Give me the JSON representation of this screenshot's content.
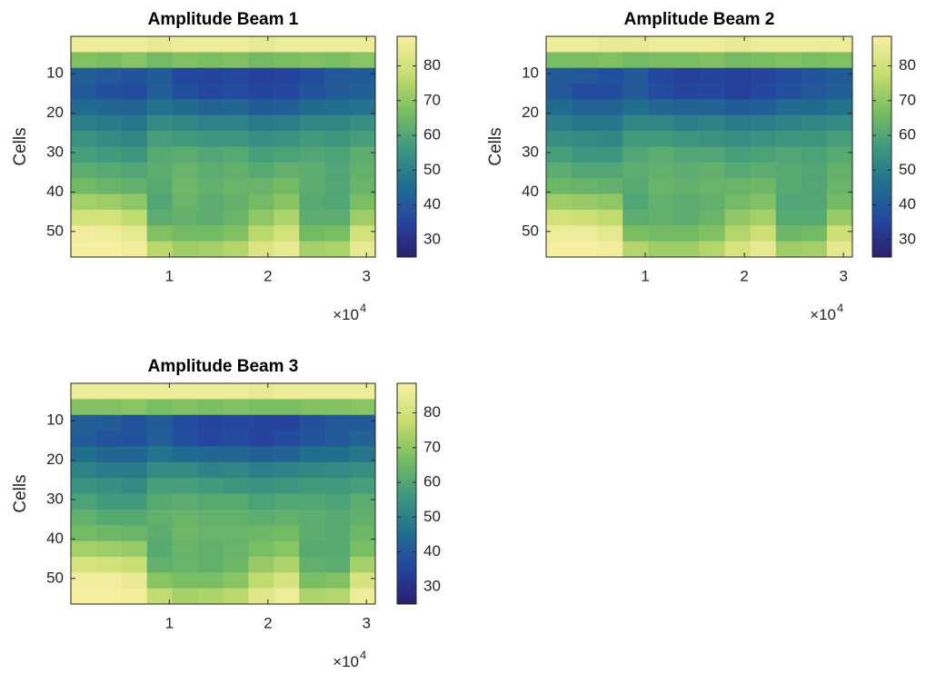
{
  "chart_data": [
    {
      "type": "heatmap",
      "title": "Amplitude Beam 1",
      "y_label": "Cells",
      "x": [
        1288,
        3863,
        6438,
        9013,
        11588,
        14163,
        16738,
        19313,
        21888,
        24463,
        27038,
        29613
      ],
      "y": [
        2.5,
        6.5,
        10.5,
        14.5,
        18.5,
        22.5,
        26.5,
        30.5,
        34.5,
        38.5,
        42.5,
        46.5,
        50.5,
        54.5
      ],
      "z": [
        [
          86,
          86,
          86,
          85,
          86,
          86,
          86,
          85,
          86,
          86,
          86,
          86
        ],
        [
          68,
          67,
          69,
          66,
          68,
          67,
          68,
          66,
          67,
          68,
          67,
          69
        ],
        [
          42,
          40,
          39,
          41,
          36,
          35,
          36,
          34,
          35,
          37,
          40,
          41
        ],
        [
          40,
          38,
          37,
          42,
          38,
          36,
          37,
          35,
          36,
          39,
          41,
          42
        ],
        [
          45,
          44,
          43,
          47,
          45,
          43,
          44,
          41,
          42,
          45,
          46,
          47
        ],
        [
          50,
          49,
          48,
          53,
          52,
          51,
          51,
          49,
          50,
          52,
          52,
          54
        ],
        [
          55,
          53,
          52,
          58,
          57,
          56,
          56,
          54,
          55,
          57,
          56,
          58
        ],
        [
          58,
          57,
          56,
          61,
          62,
          60,
          61,
          58,
          59,
          60,
          59,
          62
        ],
        [
          62,
          61,
          60,
          62,
          64,
          62,
          63,
          61,
          63,
          62,
          60,
          63
        ],
        [
          66,
          64,
          63,
          61,
          65,
          63,
          64,
          64,
          66,
          62,
          60,
          64
        ],
        [
          73,
          72,
          70,
          60,
          64,
          62,
          63,
          66,
          69,
          61,
          60,
          67
        ],
        [
          80,
          80,
          77,
          62,
          63,
          62,
          64,
          70,
          74,
          62,
          62,
          72
        ],
        [
          87,
          86,
          84,
          68,
          66,
          66,
          68,
          76,
          80,
          66,
          67,
          80
        ],
        [
          88,
          88,
          87,
          76,
          72,
          73,
          75,
          82,
          85,
          73,
          74,
          85
        ]
      ],
      "xlim": [
        1,
        30900
      ],
      "ylim": [
        0.5,
        56.5
      ],
      "y_reversed": true,
      "xticks": [
        {
          "value": 10000,
          "label": "1"
        },
        {
          "value": 20000,
          "label": "2"
        },
        {
          "value": 30000,
          "label": "3"
        }
      ],
      "x_multiplier": {
        "base": "×10",
        "exponent": "4"
      },
      "yticks": [
        10,
        20,
        30,
        40,
        50
      ],
      "clim": [
        25,
        88.5
      ],
      "cticks": [
        30,
        40,
        50,
        60,
        70,
        80
      ],
      "colormap": [
        "#2a1f6e",
        "#2446a0",
        "#21708f",
        "#3f9a7d",
        "#7cbf62",
        "#c9de70",
        "#f8f0a4"
      ]
    },
    {
      "type": "heatmap",
      "title": "Amplitude Beam 2",
      "y_label": "Cells",
      "x": [
        1288,
        3863,
        6438,
        9013,
        11588,
        14163,
        16738,
        19313,
        21888,
        24463,
        27038,
        29613
      ],
      "y": [
        2.5,
        6.5,
        10.5,
        14.5,
        18.5,
        22.5,
        26.5,
        30.5,
        34.5,
        38.5,
        42.5,
        46.5,
        50.5,
        54.5
      ],
      "z": [
        [
          86,
          86,
          85,
          85,
          86,
          86,
          86,
          85,
          86,
          86,
          86,
          86
        ],
        [
          67,
          67,
          68,
          66,
          67,
          67,
          68,
          66,
          67,
          68,
          67,
          68
        ],
        [
          41,
          40,
          38,
          40,
          36,
          34,
          35,
          34,
          35,
          37,
          39,
          41
        ],
        [
          40,
          37,
          37,
          41,
          37,
          35,
          36,
          34,
          36,
          38,
          40,
          42
        ],
        [
          45,
          43,
          43,
          46,
          44,
          43,
          43,
          41,
          42,
          45,
          45,
          47
        ],
        [
          50,
          48,
          48,
          52,
          52,
          50,
          51,
          49,
          50,
          51,
          52,
          53
        ],
        [
          54,
          53,
          52,
          57,
          57,
          56,
          55,
          54,
          55,
          56,
          56,
          58
        ],
        [
          58,
          56,
          56,
          60,
          62,
          60,
          60,
          58,
          59,
          60,
          59,
          61
        ],
        [
          62,
          60,
          60,
          62,
          63,
          62,
          63,
          61,
          62,
          61,
          60,
          63
        ],
        [
          65,
          64,
          63,
          61,
          64,
          63,
          64,
          64,
          65,
          61,
          60,
          64
        ],
        [
          72,
          71,
          70,
          60,
          63,
          62,
          63,
          66,
          68,
          60,
          60,
          66
        ],
        [
          80,
          79,
          77,
          62,
          63,
          62,
          64,
          70,
          73,
          61,
          61,
          71
        ],
        [
          86,
          86,
          84,
          67,
          66,
          66,
          68,
          75,
          79,
          65,
          66,
          79
        ],
        [
          88,
          88,
          87,
          75,
          72,
          72,
          75,
          81,
          85,
          72,
          73,
          84
        ]
      ],
      "xlim": [
        1,
        30900
      ],
      "ylim": [
        0.5,
        56.5
      ],
      "y_reversed": true,
      "xticks": [
        {
          "value": 10000,
          "label": "1"
        },
        {
          "value": 20000,
          "label": "2"
        },
        {
          "value": 30000,
          "label": "3"
        }
      ],
      "x_multiplier": {
        "base": "×10",
        "exponent": "4"
      },
      "yticks": [
        10,
        20,
        30,
        40,
        50
      ],
      "clim": [
        25,
        88.5
      ],
      "cticks": [
        30,
        40,
        50,
        60,
        70,
        80
      ],
      "colormap": [
        "#2a1f6e",
        "#2446a0",
        "#21708f",
        "#3f9a7d",
        "#7cbf62",
        "#c9de70",
        "#f8f0a4"
      ]
    },
    {
      "type": "heatmap",
      "title": "Amplitude Beam 3",
      "y_label": "Cells",
      "x": [
        1288,
        3863,
        6438,
        9013,
        11588,
        14163,
        16738,
        19313,
        21888,
        24463,
        27038,
        29613
      ],
      "y": [
        2.5,
        6.5,
        10.5,
        14.5,
        18.5,
        22.5,
        26.5,
        30.5,
        34.5,
        38.5,
        42.5,
        46.5,
        50.5,
        54.5
      ],
      "z": [
        [
          86,
          86,
          86,
          86,
          86,
          86,
          86,
          85,
          86,
          86,
          86,
          86
        ],
        [
          68,
          68,
          69,
          67,
          68,
          67,
          68,
          67,
          67,
          68,
          68,
          69
        ],
        [
          42,
          41,
          39,
          41,
          37,
          35,
          36,
          35,
          35,
          38,
          40,
          41
        ],
        [
          41,
          39,
          38,
          42,
          38,
          36,
          37,
          35,
          37,
          39,
          41,
          43
        ],
        [
          46,
          44,
          44,
          47,
          45,
          44,
          44,
          42,
          43,
          46,
          46,
          48
        ],
        [
          51,
          49,
          49,
          53,
          53,
          51,
          52,
          50,
          51,
          52,
          53,
          54
        ],
        [
          55,
          54,
          53,
          58,
          58,
          57,
          56,
          55,
          56,
          57,
          57,
          58
        ],
        [
          59,
          57,
          57,
          61,
          62,
          61,
          61,
          59,
          60,
          60,
          59,
          62
        ],
        [
          63,
          61,
          61,
          63,
          64,
          63,
          63,
          62,
          63,
          62,
          61,
          63
        ],
        [
          66,
          65,
          64,
          62,
          65,
          64,
          64,
          65,
          66,
          62,
          61,
          65
        ],
        [
          73,
          72,
          71,
          61,
          64,
          63,
          64,
          67,
          69,
          61,
          61,
          67
        ],
        [
          81,
          80,
          78,
          63,
          64,
          63,
          65,
          71,
          74,
          63,
          62,
          73
        ],
        [
          87,
          87,
          85,
          69,
          67,
          67,
          69,
          77,
          81,
          67,
          68,
          81
        ],
        [
          88,
          88,
          87,
          77,
          73,
          74,
          76,
          83,
          86,
          74,
          75,
          86
        ]
      ],
      "xlim": [
        1,
        30900
      ],
      "ylim": [
        0.5,
        56.5
      ],
      "y_reversed": true,
      "xticks": [
        {
          "value": 10000,
          "label": "1"
        },
        {
          "value": 20000,
          "label": "2"
        },
        {
          "value": 30000,
          "label": "3"
        }
      ],
      "x_multiplier": {
        "base": "×10",
        "exponent": "4"
      },
      "yticks": [
        10,
        20,
        30,
        40,
        50
      ],
      "clim": [
        25,
        88.5
      ],
      "cticks": [
        30,
        40,
        50,
        60,
        70,
        80
      ],
      "colormap": [
        "#2a1f6e",
        "#2446a0",
        "#21708f",
        "#3f9a7d",
        "#7cbf62",
        "#c9de70",
        "#f8f0a4"
      ]
    }
  ]
}
